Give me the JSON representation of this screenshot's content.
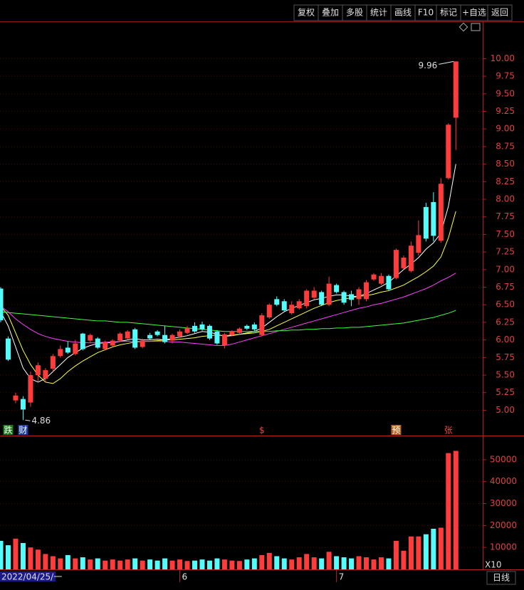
{
  "toolbar": [
    "复权",
    "叠加",
    "多股",
    "统计",
    "画线",
    "F10",
    "标记",
    "+自选",
    "返回"
  ],
  "footer": {
    "scale": "X10",
    "period": "日线"
  },
  "chart_data": [
    {
      "type": "candlestick",
      "up_color": "#ff3c3c",
      "down_color": "#54fcfc",
      "grid": true,
      "ylim": [
        4.64,
        10.53
      ],
      "yticks": [
        {
          "value": 5,
          "label": "5.00"
        },
        {
          "value": 5.25,
          "label": "5.25"
        },
        {
          "value": 5.5,
          "label": "5.50"
        },
        {
          "value": 5.75,
          "label": "5.75"
        },
        {
          "value": 6,
          "label": "6.00"
        },
        {
          "value": 6.25,
          "label": "6.25"
        },
        {
          "value": 6.5,
          "label": "6.50"
        },
        {
          "value": 6.75,
          "label": "6.75"
        },
        {
          "value": 7,
          "label": "7.00"
        },
        {
          "value": 7.25,
          "label": "7.25"
        },
        {
          "value": 7.5,
          "label": "7.50"
        },
        {
          "value": 7.75,
          "label": "7.75"
        },
        {
          "value": 8,
          "label": "8.00"
        },
        {
          "value": 8.25,
          "label": "8.25"
        },
        {
          "value": 8.5,
          "label": "8.50"
        },
        {
          "value": 8.75,
          "label": "8.75"
        },
        {
          "value": 9,
          "label": "9.00"
        },
        {
          "value": 9.25,
          "label": "9.25"
        },
        {
          "value": 9.5,
          "label": "9.50"
        },
        {
          "value": 9.75,
          "label": "9.75"
        },
        {
          "value": 10,
          "label": "10.00"
        }
      ],
      "open": [
        6.73,
        6.02,
        5.14,
        5.16,
        5.11,
        5.5,
        5.45,
        5.59,
        5.77,
        5.89,
        5.8,
        6.09,
        5.99,
        6.02,
        5.87,
        5.92,
        5.99,
        6.02,
        6.15,
        5.9,
        6.07,
        6.12,
        6.07,
        5.99,
        6.05,
        6.1,
        6.2,
        6.22,
        6.2,
        6.12,
        5.92,
        6.07,
        6.1,
        6.2,
        6.22,
        6.07,
        6.32,
        6.58,
        6.55,
        6.38,
        6.45,
        6.48,
        6.6,
        6.68,
        6.5,
        6.78,
        6.68,
        6.65,
        6.58,
        6.58,
        6.86,
        6.8,
        6.91,
        6.88,
        7.02,
        6.98,
        7.24,
        7.89,
        7.96,
        7.41,
        8.3,
        9.16
      ],
      "high": [
        6.75,
        6.05,
        5.25,
        5.2,
        5.55,
        5.68,
        5.6,
        5.8,
        5.92,
        5.98,
        6.0,
        6.1,
        6.09,
        6.04,
        5.99,
        6.01,
        6.11,
        6.14,
        6.17,
        6.02,
        6.1,
        6.14,
        6.2,
        6.09,
        6.15,
        6.2,
        6.25,
        6.26,
        6.22,
        6.14,
        6.1,
        6.14,
        6.18,
        6.22,
        6.25,
        6.38,
        6.52,
        6.62,
        6.58,
        6.55,
        6.58,
        6.72,
        6.75,
        6.7,
        6.9,
        6.8,
        6.7,
        6.7,
        6.75,
        6.85,
        6.95,
        6.95,
        6.93,
        7.3,
        7.2,
        7.4,
        7.7,
        7.95,
        8.1,
        8.3,
        9.08,
        9.96
      ],
      "low": [
        6.25,
        5.7,
        5.1,
        4.86,
        5.05,
        5.4,
        5.4,
        5.55,
        5.75,
        5.8,
        5.78,
        5.85,
        5.95,
        5.87,
        5.85,
        5.9,
        5.97,
        6.0,
        5.87,
        5.88,
        6.0,
        6.05,
        5.95,
        5.95,
        6.03,
        6.08,
        6.1,
        6.13,
        6.0,
        5.93,
        5.88,
        6.05,
        6.08,
        6.14,
        6.12,
        6.05,
        6.3,
        6.48,
        6.4,
        6.36,
        6.43,
        6.45,
        6.58,
        6.48,
        6.48,
        6.66,
        6.5,
        6.48,
        6.5,
        6.55,
        6.84,
        6.78,
        6.7,
        6.86,
        7.0,
        6.96,
        7.2,
        7.4,
        7.4,
        7.38,
        8.28,
        8.7
      ],
      "close": [
        6.28,
        5.72,
        5.21,
        5.01,
        5.5,
        5.64,
        5.57,
        5.77,
        5.87,
        5.82,
        5.95,
        5.87,
        6.07,
        5.89,
        5.97,
        5.99,
        6.09,
        6.12,
        5.89,
        5.99,
        6.02,
        6.07,
        5.97,
        6.07,
        6.12,
        6.17,
        6.12,
        6.15,
        6.02,
        5.95,
        6.08,
        6.12,
        6.16,
        6.16,
        6.15,
        6.35,
        6.5,
        6.5,
        6.42,
        6.5,
        6.55,
        6.7,
        6.7,
        6.5,
        6.8,
        6.68,
        6.53,
        6.57,
        6.72,
        6.82,
        6.93,
        6.91,
        6.72,
        7.28,
        7.17,
        7.34,
        7.49,
        7.44,
        7.48,
        8.22,
        9.06,
        9.96
      ],
      "moving_averages": [
        {
          "color": "#ffffff",
          "values": [
            6.4,
            6.2,
            5.9,
            5.6,
            5.45,
            5.4,
            5.45,
            5.55,
            5.65,
            5.75,
            5.82,
            5.88,
            5.92,
            5.95,
            5.96,
            5.96,
            5.98,
            6.0,
            6.02,
            6.0,
            6.0,
            6.01,
            6.0,
            6.02,
            6.04,
            6.06,
            6.09,
            6.12,
            6.11,
            6.08,
            6.05,
            6.06,
            6.08,
            6.1,
            6.12,
            6.17,
            6.25,
            6.33,
            6.4,
            6.45,
            6.49,
            6.53,
            6.57,
            6.59,
            6.62,
            6.64,
            6.64,
            6.62,
            6.62,
            6.66,
            6.71,
            6.76,
            6.82,
            6.91,
            7.0,
            7.08,
            7.17,
            7.29,
            7.38,
            7.52,
            7.9,
            8.5
          ]
        },
        {
          "color": "#ffff40",
          "values": [
            6.48,
            6.35,
            6.1,
            5.85,
            5.65,
            5.5,
            5.4,
            5.38,
            5.45,
            5.55,
            5.63,
            5.7,
            5.76,
            5.82,
            5.86,
            5.9,
            5.93,
            5.95,
            5.97,
            5.98,
            5.98,
            5.99,
            6.0,
            6.0,
            6.01,
            6.02,
            6.03,
            6.05,
            6.06,
            6.07,
            6.06,
            6.07,
            6.08,
            6.09,
            6.1,
            6.12,
            6.15,
            6.2,
            6.25,
            6.3,
            6.35,
            6.4,
            6.45,
            6.49,
            6.53,
            6.56,
            6.58,
            6.6,
            6.62,
            6.63,
            6.65,
            6.68,
            6.7,
            6.74,
            6.78,
            6.84,
            6.9,
            6.97,
            7.05,
            7.18,
            7.45,
            7.83
          ]
        },
        {
          "color": "#ff40ff",
          "values": [
            6.48,
            6.4,
            6.3,
            6.22,
            6.15,
            6.09,
            6.05,
            6.02,
            6.0,
            5.98,
            5.97,
            5.96,
            5.96,
            5.96,
            5.97,
            5.97,
            5.98,
            5.98,
            5.98,
            5.98,
            5.98,
            5.98,
            5.98,
            5.97,
            5.97,
            5.96,
            5.95,
            5.94,
            5.93,
            5.92,
            5.92,
            5.94,
            5.97,
            6.0,
            6.03,
            6.06,
            6.09,
            6.12,
            6.15,
            6.18,
            6.21,
            6.24,
            6.27,
            6.3,
            6.33,
            6.36,
            6.39,
            6.42,
            6.45,
            6.47,
            6.5,
            6.52,
            6.55,
            6.58,
            6.61,
            6.65,
            6.69,
            6.73,
            6.78,
            6.84,
            6.89,
            6.95
          ]
        },
        {
          "color": "#40ff40",
          "values": [
            6.4,
            6.39,
            6.38,
            6.37,
            6.36,
            6.35,
            6.34,
            6.33,
            6.32,
            6.31,
            6.3,
            6.29,
            6.28,
            6.27,
            6.27,
            6.26,
            6.25,
            6.25,
            6.24,
            6.23,
            6.22,
            6.21,
            6.2,
            6.19,
            6.18,
            6.17,
            6.16,
            6.15,
            6.14,
            6.13,
            6.12,
            6.12,
            6.12,
            6.12,
            6.12,
            6.12,
            6.12,
            6.13,
            6.13,
            6.14,
            6.14,
            6.15,
            6.15,
            6.16,
            6.16,
            6.17,
            6.17,
            6.18,
            6.18,
            6.19,
            6.2,
            6.21,
            6.22,
            6.23,
            6.24,
            6.26,
            6.28,
            6.3,
            6.32,
            6.35,
            6.38,
            6.42
          ]
        }
      ],
      "annotations": [
        {
          "text": "9.96",
          "value": 9.96
        },
        {
          "text": "4.86",
          "value": 4.86
        }
      ],
      "signals": [
        null,
        "跌",
        null,
        "财",
        null,
        null,
        null,
        null,
        null,
        null,
        null,
        null,
        null,
        null,
        null,
        null,
        null,
        null,
        null,
        null,
        null,
        null,
        null,
        null,
        null,
        null,
        null,
        null,
        null,
        null,
        null,
        null,
        null,
        null,
        null,
        "$",
        null,
        null,
        null,
        null,
        null,
        null,
        null,
        null,
        null,
        null,
        null,
        null,
        null,
        null,
        null,
        null,
        null,
        "预",
        null,
        null,
        null,
        null,
        null,
        null,
        "张",
        null
      ]
    },
    {
      "type": "bar",
      "ylim": [
        0,
        60000
      ],
      "yticks": [
        10000,
        20000,
        30000,
        40000,
        50000
      ],
      "grid": true,
      "categories": [
        "2022/04/25/一",
        null,
        null,
        null,
        null,
        null,
        null,
        null,
        null,
        null,
        null,
        null,
        null,
        null,
        null,
        null,
        null,
        null,
        null,
        null,
        null,
        null,
        null,
        null,
        "6",
        null,
        null,
        null,
        null,
        null,
        null,
        null,
        null,
        null,
        null,
        null,
        null,
        null,
        null,
        null,
        null,
        null,
        null,
        null,
        null,
        "7",
        null,
        null,
        null,
        null,
        null,
        null,
        null,
        null,
        null,
        null,
        null,
        null,
        null,
        null,
        null,
        null
      ],
      "values": [
        13000,
        11000,
        14000,
        12000,
        10000,
        9000,
        7000,
        6000,
        5000,
        6500,
        5000,
        5500,
        4500,
        5000,
        4000,
        4500,
        4000,
        4500,
        5000,
        4000,
        4500,
        4000,
        5000,
        4000,
        4500,
        3800,
        4000,
        4500,
        4000,
        5000,
        4500,
        4000,
        3800,
        4500,
        5000,
        6500,
        7500,
        6000,
        5000,
        4500,
        5500,
        7000,
        5500,
        5000,
        8000,
        6000,
        5500,
        5000,
        6000,
        5500,
        4500,
        5500,
        5000,
        13000,
        8500,
        15000,
        15000,
        16000,
        18500,
        19000,
        53000,
        54000
      ]
    }
  ]
}
